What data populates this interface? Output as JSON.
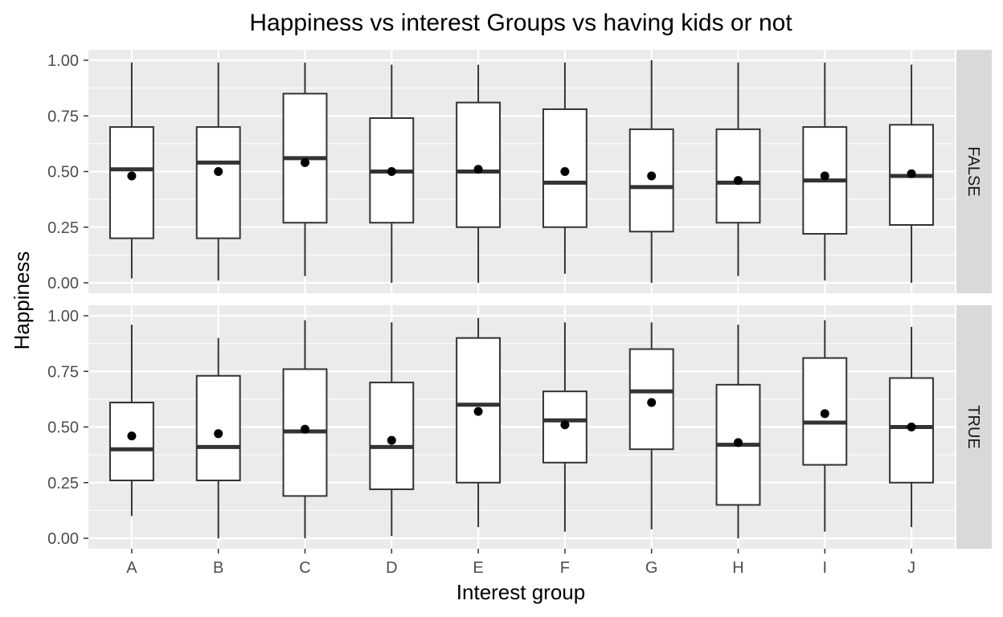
{
  "chart_data": {
    "type": "boxplot",
    "title": "Happiness vs interest Groups vs having kids or not",
    "xlabel": "Interest group",
    "ylabel": "Happiness",
    "categories": [
      "A",
      "B",
      "C",
      "D",
      "E",
      "F",
      "G",
      "H",
      "I",
      "J"
    ],
    "ylim": [
      0,
      1
    ],
    "y_ticks": [
      0,
      0.25,
      0.5,
      0.75,
      1
    ],
    "y_tick_labels": [
      "0.00",
      "0.25",
      "0.50",
      "0.75",
      "1.00"
    ],
    "grid": true,
    "facets": [
      {
        "label": "FALSE",
        "boxes": [
          {
            "category": "A",
            "lower_whisker": 0.02,
            "q1": 0.2,
            "median": 0.51,
            "q3": 0.7,
            "upper_whisker": 0.99,
            "mean": 0.48
          },
          {
            "category": "B",
            "lower_whisker": 0.01,
            "q1": 0.2,
            "median": 0.54,
            "q3": 0.7,
            "upper_whisker": 0.99,
            "mean": 0.5
          },
          {
            "category": "C",
            "lower_whisker": 0.03,
            "q1": 0.27,
            "median": 0.56,
            "q3": 0.85,
            "upper_whisker": 0.99,
            "mean": 0.54
          },
          {
            "category": "D",
            "lower_whisker": 0.0,
            "q1": 0.27,
            "median": 0.5,
            "q3": 0.74,
            "upper_whisker": 0.98,
            "mean": 0.5
          },
          {
            "category": "E",
            "lower_whisker": 0.0,
            "q1": 0.25,
            "median": 0.5,
            "q3": 0.81,
            "upper_whisker": 0.98,
            "mean": 0.51
          },
          {
            "category": "F",
            "lower_whisker": 0.04,
            "q1": 0.25,
            "median": 0.45,
            "q3": 0.78,
            "upper_whisker": 0.99,
            "mean": 0.5
          },
          {
            "category": "G",
            "lower_whisker": 0.0,
            "q1": 0.23,
            "median": 0.43,
            "q3": 0.69,
            "upper_whisker": 1.0,
            "mean": 0.48
          },
          {
            "category": "H",
            "lower_whisker": 0.03,
            "q1": 0.27,
            "median": 0.45,
            "q3": 0.69,
            "upper_whisker": 0.99,
            "mean": 0.46
          },
          {
            "category": "I",
            "lower_whisker": 0.01,
            "q1": 0.22,
            "median": 0.46,
            "q3": 0.7,
            "upper_whisker": 0.99,
            "mean": 0.48
          },
          {
            "category": "J",
            "lower_whisker": 0.0,
            "q1": 0.26,
            "median": 0.48,
            "q3": 0.71,
            "upper_whisker": 0.98,
            "mean": 0.49
          }
        ]
      },
      {
        "label": "TRUE",
        "boxes": [
          {
            "category": "A",
            "lower_whisker": 0.1,
            "q1": 0.26,
            "median": 0.4,
            "q3": 0.61,
            "upper_whisker": 0.96,
            "mean": 0.46
          },
          {
            "category": "B",
            "lower_whisker": 0.0,
            "q1": 0.26,
            "median": 0.41,
            "q3": 0.73,
            "upper_whisker": 0.9,
            "mean": 0.47
          },
          {
            "category": "C",
            "lower_whisker": 0.0,
            "q1": 0.19,
            "median": 0.48,
            "q3": 0.76,
            "upper_whisker": 0.98,
            "mean": 0.49
          },
          {
            "category": "D",
            "lower_whisker": 0.01,
            "q1": 0.22,
            "median": 0.41,
            "q3": 0.7,
            "upper_whisker": 0.97,
            "mean": 0.44
          },
          {
            "category": "E",
            "lower_whisker": 0.05,
            "q1": 0.25,
            "median": 0.6,
            "q3": 0.9,
            "upper_whisker": 0.99,
            "mean": 0.57
          },
          {
            "category": "F",
            "lower_whisker": 0.03,
            "q1": 0.34,
            "median": 0.53,
            "q3": 0.66,
            "upper_whisker": 0.97,
            "mean": 0.51
          },
          {
            "category": "G",
            "lower_whisker": 0.04,
            "q1": 0.4,
            "median": 0.66,
            "q3": 0.85,
            "upper_whisker": 0.97,
            "mean": 0.61
          },
          {
            "category": "H",
            "lower_whisker": 0.0,
            "q1": 0.15,
            "median": 0.42,
            "q3": 0.69,
            "upper_whisker": 0.96,
            "mean": 0.43
          },
          {
            "category": "I",
            "lower_whisker": 0.03,
            "q1": 0.33,
            "median": 0.52,
            "q3": 0.81,
            "upper_whisker": 0.98,
            "mean": 0.56
          },
          {
            "category": "J",
            "lower_whisker": 0.05,
            "q1": 0.25,
            "median": 0.5,
            "q3": 0.72,
            "upper_whisker": 0.95,
            "mean": 0.5
          }
        ]
      }
    ],
    "colors": {
      "panel_background": "#ebebeb",
      "grid": "#ffffff",
      "box_fill": "#ffffff",
      "box_line": "#333333",
      "median_line": "#333333",
      "mean_point": "#000000",
      "strip_background": "#d9d9d9",
      "axis_tick": "#333333"
    }
  }
}
